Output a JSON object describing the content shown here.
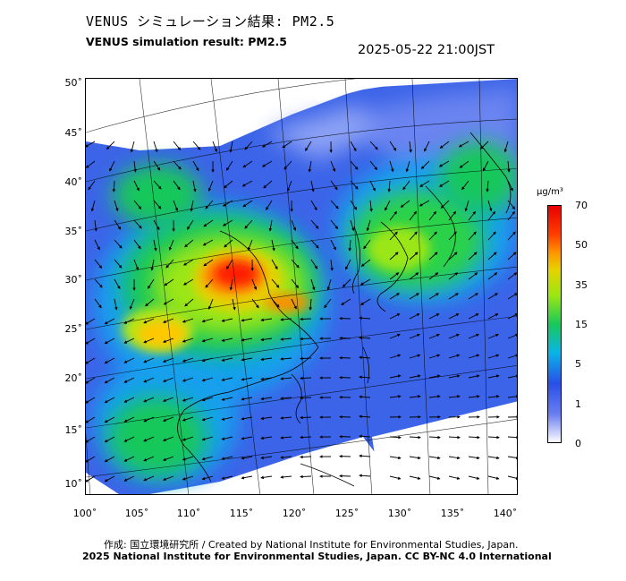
{
  "header": {
    "title_jp": "VENUS シミュレーション結果: PM2.5",
    "title_en": "VENUS simulation result: PM2.5",
    "timestamp": "2025-05-22 21:00JST"
  },
  "map": {
    "lat_labels": [
      "50˚",
      "45˚",
      "40˚",
      "35˚",
      "30˚",
      "25˚",
      "20˚",
      "15˚",
      "10˚"
    ],
    "lon_labels": [
      "100˚",
      "105˚",
      "110˚",
      "115˚",
      "120˚",
      "125˚",
      "130˚",
      "135˚",
      "140˚"
    ]
  },
  "colorbar": {
    "unit": "μg/m³",
    "ticks": [
      "70",
      "50",
      "35",
      "15",
      "5",
      "1",
      "0"
    ],
    "colors": [
      "#ff0000",
      "#ff8c00",
      "#e6d200",
      "#9be614",
      "#19c864",
      "#0aa0f0",
      "#2850e6",
      "#5a6ef0",
      "#ffffff"
    ]
  },
  "footer": {
    "credit_line1": "作成: 国立環境研究所 / Created by National Institute for Environmental Studies, Japan.",
    "credit_line2": "2025 National Institute for Environmental Studies, Japan. CC BY-NC 4.0 International"
  }
}
